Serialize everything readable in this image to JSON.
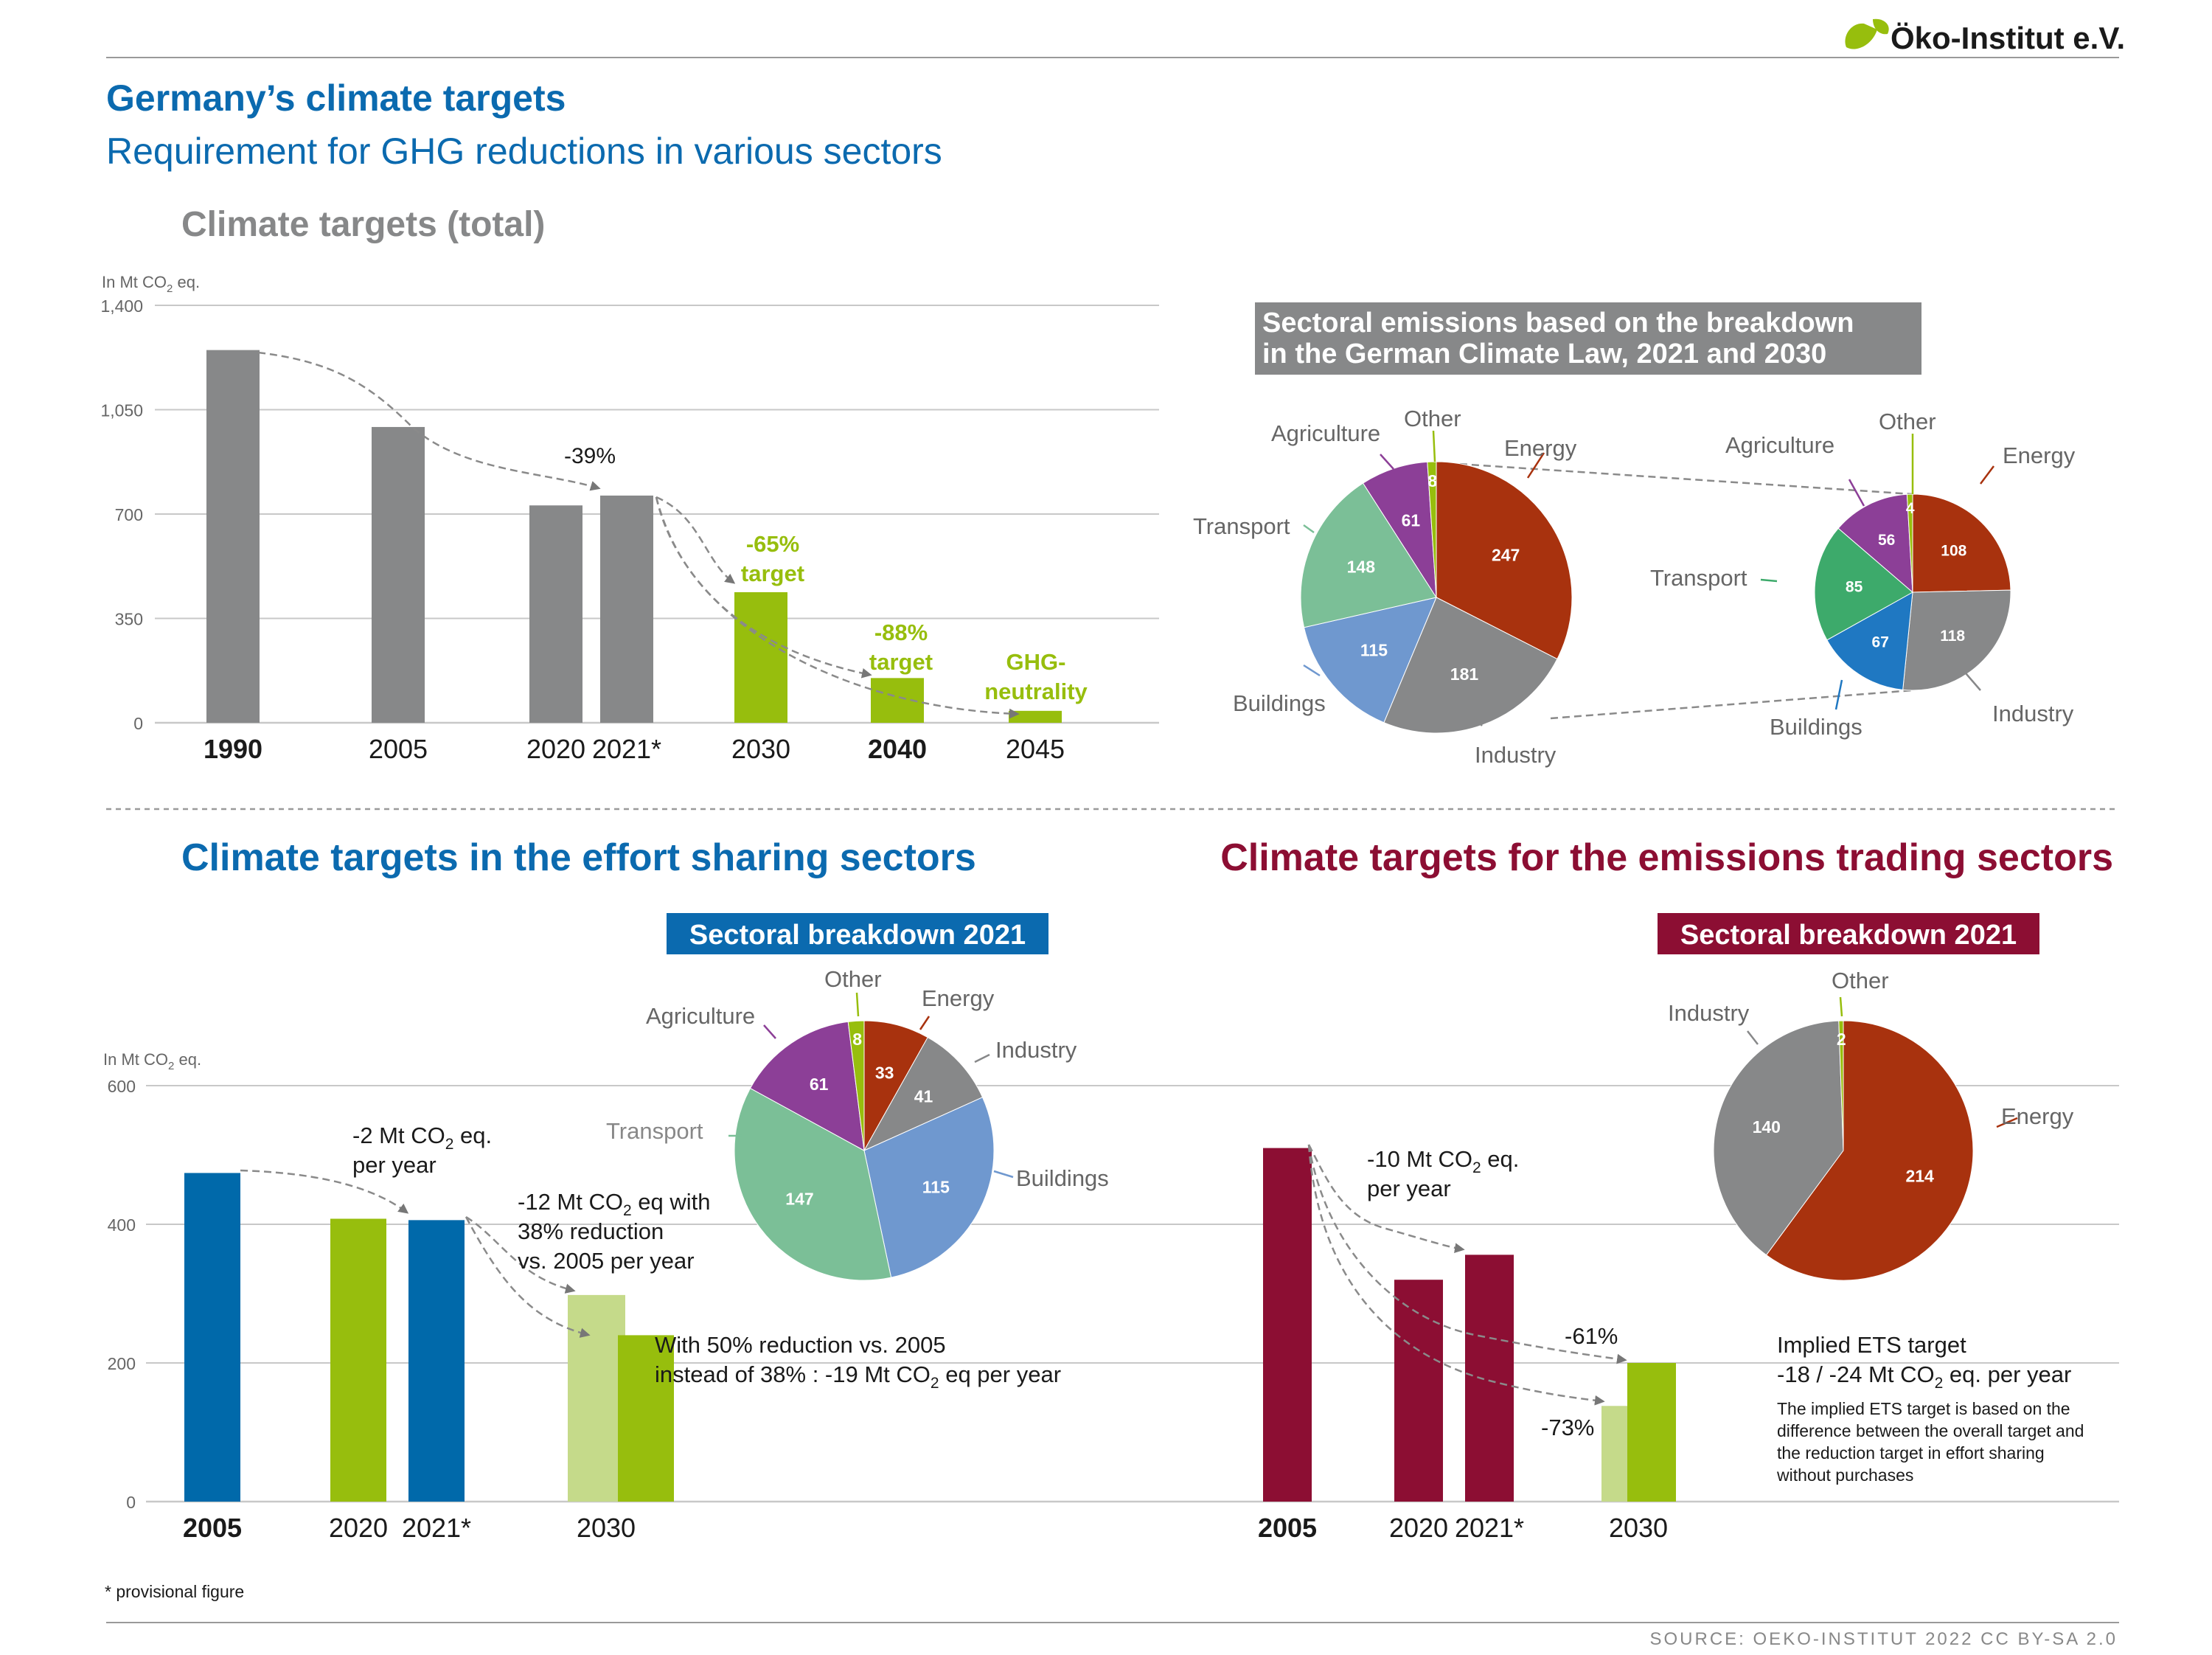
{
  "header": {
    "logo_text": "Öko-Institut e.V.",
    "title": "Germany’s climate targets",
    "subtitle": "Requirement for GHG reductions in various sectors"
  },
  "colors": {
    "blue_title": "#0B6AAF",
    "wine": "#8C0E33",
    "gray_bar": "#878889",
    "green": "#97BE0D",
    "light_green": "#C5DA8A",
    "blue_bar": "#0069AA",
    "energy": "#A8320E",
    "industry": "#878889",
    "buildings": "#6F98CF",
    "transport": "#7BBF97",
    "transport_2030": "#3DAA6B",
    "buildings_2030": "#1F78C2",
    "agriculture": "#8C3F97",
    "other": "#97BE0D"
  },
  "total_section": {
    "heading": "Climate targets (total)",
    "unit_prefix": "In Mt CO",
    "unit_sub": "2",
    "unit_suffix": " eq.",
    "y_ticks": [
      "1,400",
      "1,050",
      "700",
      "350",
      "0"
    ],
    "annotations": {
      "reduction_2021": "-39%",
      "target_2030_line1": "-65%",
      "target_2030_line2": "target",
      "target_2040_line1": "-88%",
      "target_2040_line2": "target",
      "target_2045_line1": "GHG-",
      "target_2045_line2": "neutrality"
    }
  },
  "sectoral_pies": {
    "heading_line1": "Sectoral emissions based on the breakdown",
    "heading_line2": "in the German Climate Law, 2021 and 2030",
    "labels_2021": {
      "energy": "Energy",
      "industry": "Industry",
      "buildings": "Buildings",
      "transport": "Transport",
      "agriculture": "Agriculture",
      "other": "Other"
    },
    "labels_2030": {
      "energy": "Energy",
      "industry": "Industry",
      "buildings": "Buildings",
      "transport": "Transport",
      "agriculture": "Agriculture",
      "other": "Other"
    }
  },
  "effort_section": {
    "heading": "Climate targets in the effort sharing sectors",
    "breakdown_label": "Sectoral breakdown 2021",
    "unit_prefix": "In Mt CO",
    "unit_sub": "2",
    "unit_suffix": " eq.",
    "y_ticks": [
      "600",
      "400",
      "200",
      "0"
    ],
    "pie_labels": {
      "energy": "Energy",
      "industry": "Industry",
      "buildings": "Buildings",
      "transport": "Transport",
      "agriculture": "Agriculture",
      "other": "Other"
    },
    "annotations": {
      "a1_prefix": "-2 Mt CO",
      "a1_sub": "2",
      "a1_suffix": " eq.",
      "a1_line2": "per year",
      "a2_prefix": "-12 Mt CO",
      "a2_sub": "2",
      "a2_suffix": " eq with",
      "a2_line2": "38% reduction",
      "a2_line3": "vs. 2005 per year",
      "a3_line1": "With 50% reduction vs. 2005",
      "a3_line2_prefix": "instead of 38% : -19 Mt CO",
      "a3_line2_sub": "2",
      "a3_line2_suffix": " eq per year"
    }
  },
  "ets_section": {
    "heading": "Climate targets for the emissions trading sectors",
    "breakdown_label": "Sectoral breakdown 2021",
    "pie_labels": {
      "energy": "Energy",
      "industry": "Industry",
      "other": "Other"
    },
    "annotations": {
      "a1_prefix": "-10 Mt CO",
      "a1_sub": "2",
      "a1_suffix": " eq.",
      "a1_line2": "per year",
      "reduction_61": "-61%",
      "reduction_73": "-73%",
      "implied_line1": "Implied ETS target",
      "implied_line2_prefix": "-18 / -24 Mt CO",
      "implied_line2_sub": "2",
      "implied_line2_suffix": " eq. per year",
      "note_1": "The implied ETS target is based on the",
      "note_2": "difference between the overall target and",
      "note_3": "the reduction target in effort sharing",
      "note_4": "without purchases"
    }
  },
  "footer": {
    "footnote": "* provisional figure",
    "source": "SOURCE: OEKO-INSTITUT 2022 CC BY-SA 2.0"
  },
  "chart_data": [
    {
      "id": "total",
      "type": "bar",
      "title": "Climate targets (total)",
      "ylabel": "In Mt CO2 eq.",
      "ylim": [
        0,
        1400
      ],
      "grid": true,
      "categories": [
        "1990",
        "2005",
        "2020",
        "2021*",
        "2030",
        "2040",
        "2045"
      ],
      "values": [
        1250,
        992,
        729,
        762,
        438,
        150,
        40
      ],
      "bar_colors": [
        "#878889",
        "#878889",
        "#878889",
        "#878889",
        "#97BE0D",
        "#97BE0D",
        "#97BE0D"
      ],
      "bold_categories": [
        "1990",
        "2040"
      ]
    },
    {
      "id": "pie_2021",
      "type": "pie",
      "slices": [
        {
          "label": "Energy",
          "value": 247,
          "color": "#A8320E"
        },
        {
          "label": "Industry",
          "value": 181,
          "color": "#878889"
        },
        {
          "label": "Buildings",
          "value": 115,
          "color": "#6F98CF"
        },
        {
          "label": "Transport",
          "value": 148,
          "color": "#7BBF97"
        },
        {
          "label": "Agriculture",
          "value": 61,
          "color": "#8C3F97"
        },
        {
          "label": "Other",
          "value": 8,
          "color": "#97BE0D"
        }
      ]
    },
    {
      "id": "pie_2030",
      "type": "pie",
      "slices": [
        {
          "label": "Energy",
          "value": 108,
          "color": "#A8320E"
        },
        {
          "label": "Industry",
          "value": 118,
          "color": "#878889"
        },
        {
          "label": "Buildings",
          "value": 67,
          "color": "#1F78C2"
        },
        {
          "label": "Transport",
          "value": 85,
          "color": "#3DAA6B"
        },
        {
          "label": "Agriculture",
          "value": 56,
          "color": "#8C3F97"
        },
        {
          "label": "Other",
          "value": 4,
          "color": "#97BE0D"
        }
      ]
    },
    {
      "id": "effort_bars",
      "type": "bar",
      "ylabel": "In Mt CO2 eq.",
      "ylim": [
        0,
        600
      ],
      "grid": true,
      "categories": [
        "2005",
        "2020",
        "2021*",
        "2030"
      ],
      "values": [
        474,
        408,
        406,
        240
      ],
      "extra_bar_2030": 298,
      "bar_colors": [
        "#0069AA",
        "#97BE0D",
        "#0069AA",
        "#97BE0D"
      ],
      "bold_categories": [
        "2005"
      ]
    },
    {
      "id": "effort_pie",
      "type": "pie",
      "title": "Sectoral breakdown 2021",
      "slices": [
        {
          "label": "Energy",
          "value": 33,
          "color": "#A8320E"
        },
        {
          "label": "Industry",
          "value": 41,
          "color": "#878889"
        },
        {
          "label": "Buildings",
          "value": 115,
          "color": "#6F98CF"
        },
        {
          "label": "Transport",
          "value": 147,
          "color": "#7BBF97"
        },
        {
          "label": "Agriculture",
          "value": 61,
          "color": "#8C3F97"
        },
        {
          "label": "Other",
          "value": 8,
          "color": "#97BE0D"
        }
      ]
    },
    {
      "id": "ets_bars",
      "type": "bar",
      "ylim": [
        0,
        600
      ],
      "grid": true,
      "categories": [
        "2005",
        "2020",
        "2021*",
        "2030"
      ],
      "values": [
        510,
        320,
        356,
        200
      ],
      "extra_bar_2030": 138,
      "bar_colors": [
        "#8C0E33",
        "#8C0E33",
        "#8C0E33",
        "#97BE0D"
      ],
      "bold_categories": [
        "2005"
      ]
    },
    {
      "id": "ets_pie",
      "type": "pie",
      "title": "Sectoral breakdown 2021",
      "slices": [
        {
          "label": "Energy",
          "value": 214,
          "color": "#A8320E"
        },
        {
          "label": "Industry",
          "value": 140,
          "color": "#878889"
        },
        {
          "label": "Other",
          "value": 2,
          "color": "#97BE0D"
        }
      ]
    }
  ]
}
